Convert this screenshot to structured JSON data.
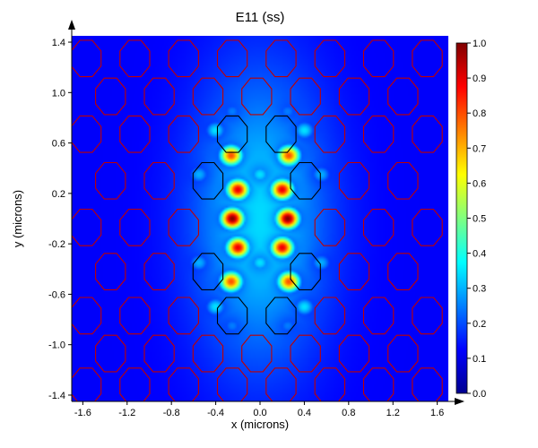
{
  "chart_data": {
    "type": "heatmap",
    "title": "E11 (ss)",
    "xlabel": "x (microns)",
    "ylabel": "y (microns)",
    "xlim": [
      -1.7,
      1.7
    ],
    "ylim": [
      -1.45,
      1.45
    ],
    "x_ticks": [
      "-1.6",
      "-1.2",
      "-0.8",
      "-0.4",
      "0.0",
      "0.4",
      "0.8",
      "1.2",
      "1.6"
    ],
    "y_ticks": [
      "1.4",
      "1.0",
      "0.6",
      "0.2",
      "-0.2",
      "-0.6",
      "-1.0",
      "-1.4"
    ],
    "colorbar": {
      "range": [
        0,
        1
      ],
      "ticks": [
        "1.0",
        "0.9",
        "0.8",
        "0.7",
        "0.6",
        "0.5",
        "0.4",
        "0.3",
        "0.2",
        "0.1",
        "0.0"
      ]
    },
    "colormap": "jet",
    "background_value": 0.12,
    "field_peaks": [
      {
        "x": -0.25,
        "y": 0.0,
        "value": 1.0
      },
      {
        "x": 0.25,
        "y": 0.0,
        "value": 1.0
      },
      {
        "x": -0.2,
        "y": 0.23,
        "value": 0.9
      },
      {
        "x": 0.2,
        "y": 0.23,
        "value": 0.9
      },
      {
        "x": -0.2,
        "y": -0.23,
        "value": 0.9
      },
      {
        "x": 0.2,
        "y": -0.23,
        "value": 0.9
      },
      {
        "x": -0.26,
        "y": 0.5,
        "value": 0.8
      },
      {
        "x": 0.26,
        "y": 0.5,
        "value": 0.8
      },
      {
        "x": -0.26,
        "y": -0.5,
        "value": 0.8
      },
      {
        "x": 0.26,
        "y": -0.5,
        "value": 0.8
      },
      {
        "x": 0.0,
        "y": 0.35,
        "value": 0.35
      },
      {
        "x": 0.0,
        "y": -0.35,
        "value": 0.35
      },
      {
        "x": -0.4,
        "y": 0.7,
        "value": 0.35
      },
      {
        "x": 0.4,
        "y": 0.7,
        "value": 0.35
      },
      {
        "x": -0.4,
        "y": -0.7,
        "value": 0.35
      },
      {
        "x": 0.4,
        "y": -0.7,
        "value": 0.35
      },
      {
        "x": -0.55,
        "y": 0.35,
        "value": 0.3
      },
      {
        "x": 0.55,
        "y": 0.35,
        "value": 0.3
      },
      {
        "x": -0.55,
        "y": -0.35,
        "value": 0.3
      },
      {
        "x": 0.55,
        "y": -0.35,
        "value": 0.3
      },
      {
        "x": -0.25,
        "y": 0.85,
        "value": 0.25
      },
      {
        "x": 0.25,
        "y": 0.85,
        "value": 0.25
      },
      {
        "x": -0.25,
        "y": -0.85,
        "value": 0.25
      },
      {
        "x": 0.25,
        "y": -0.85,
        "value": 0.25
      }
    ],
    "hole_lattice": {
      "shape": "octagon",
      "outline_color": "#c00000",
      "core_outline_color": "#000000",
      "rows": [
        {
          "y": 1.27,
          "x": [
            -1.57,
            -1.13,
            -0.69,
            -0.25,
            0.19,
            0.63,
            1.07,
            1.51
          ]
        },
        {
          "y": 0.97,
          "x": [
            -1.35,
            -0.91,
            -0.47,
            -0.03,
            0.41,
            0.85,
            1.29
          ]
        },
        {
          "y": 0.67,
          "x": [
            -1.57,
            -1.13,
            -0.69,
            -0.25,
            0.19,
            0.63,
            1.07,
            1.51
          ]
        },
        {
          "y": 0.3,
          "x": [
            -1.35,
            -0.91,
            -0.47,
            0.41,
            0.85,
            1.29
          ]
        },
        {
          "y": -0.07,
          "x": [
            -1.57,
            -1.13,
            -0.69,
            0.63,
            1.07,
            1.51
          ]
        },
        {
          "y": -0.42,
          "x": [
            -1.35,
            -0.91,
            -0.47,
            0.41,
            0.85,
            1.29
          ]
        },
        {
          "y": -0.77,
          "x": [
            -1.57,
            -1.13,
            -0.69,
            -0.25,
            0.19,
            0.63,
            1.07,
            1.51
          ]
        },
        {
          "y": -1.07,
          "x": [
            -1.35,
            -0.91,
            -0.47,
            -0.03,
            0.41,
            0.85,
            1.29
          ]
        },
        {
          "y": -1.33,
          "x": [
            -1.57,
            -1.13,
            -0.69,
            -0.25,
            0.19,
            0.63,
            1.07,
            1.51
          ]
        }
      ]
    }
  }
}
